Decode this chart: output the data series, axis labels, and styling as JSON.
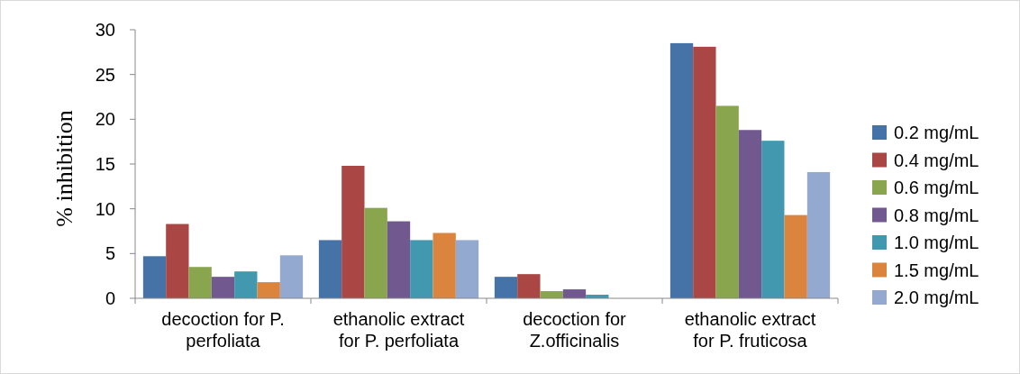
{
  "chart_data": {
    "type": "bar",
    "ylabel": "% inhibition",
    "categories": [
      "decoction for P. perfoliata",
      "ethanolic extract for P. perfoliata",
      "decoction for Z.officinalis",
      "ethanolic extract for P. fruticosa"
    ],
    "series": [
      {
        "name": "0.2 mg/mL",
        "color": "#4572a7",
        "values": [
          4.7,
          6.5,
          2.4,
          28.5
        ]
      },
      {
        "name": "0.4 mg/mL",
        "color": "#aa4643",
        "values": [
          8.3,
          14.8,
          2.7,
          28.1
        ]
      },
      {
        "name": "0.6 mg/mL",
        "color": "#89a54e",
        "values": [
          3.5,
          10.1,
          0.8,
          21.5
        ]
      },
      {
        "name": "0.8 mg/mL",
        "color": "#71588f",
        "values": [
          2.4,
          8.6,
          1.0,
          18.8
        ]
      },
      {
        "name": "1.0 mg/mL",
        "color": "#4198af",
        "values": [
          3.0,
          6.5,
          0.4,
          17.6
        ]
      },
      {
        "name": "1.5 mg/mL",
        "color": "#db843d",
        "values": [
          1.8,
          7.3,
          0,
          9.3
        ]
      },
      {
        "name": "2.0 mg/mL",
        "color": "#93a9cf",
        "values": [
          4.8,
          6.5,
          0,
          14.1
        ]
      }
    ],
    "ylim": [
      0,
      30
    ],
    "yticks": [
      0,
      5,
      10,
      15,
      20,
      25,
      30
    ],
    "grid": false,
    "legend": "right"
  }
}
